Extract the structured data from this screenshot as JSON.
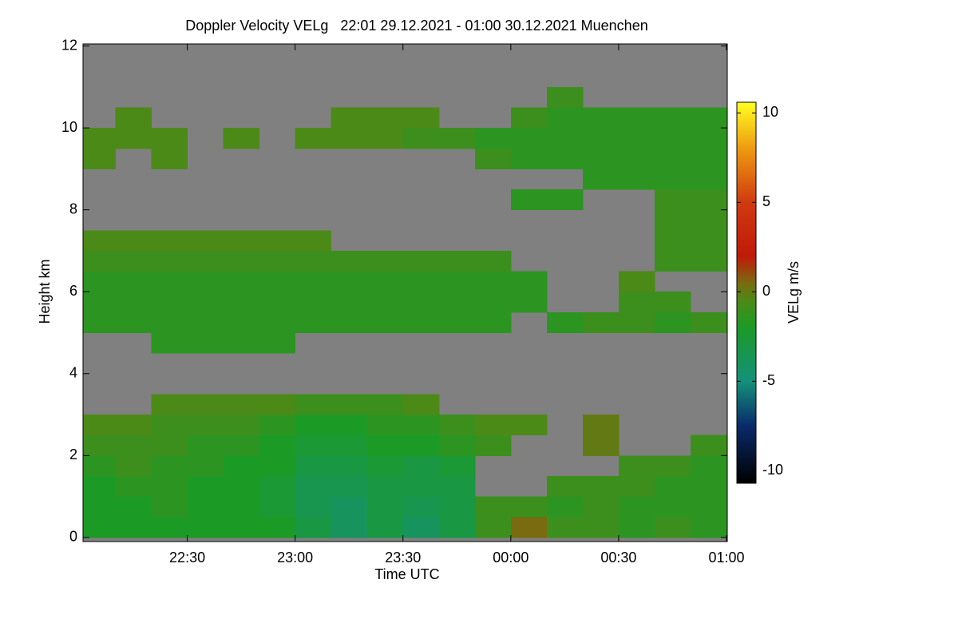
{
  "chart_data": {
    "type": "heatmap",
    "title": "Doppler Velocity VELg   22:01 29.12.2021 - 01:00 30.12.2021 Muenchen",
    "xlabel": "Time UTC",
    "ylabel": "Height km",
    "colorbar_label": "VELg m/s",
    "background": "#808080",
    "xlim": [
      "22:01",
      "01:00"
    ],
    "xticks": [
      "22:30",
      "23:00",
      "23:30",
      "00:00",
      "00:30",
      "01:00"
    ],
    "ylim": [
      -0.1,
      12.05
    ],
    "yticks": [
      0,
      2,
      4,
      6,
      8,
      10,
      12
    ],
    "clim": [
      -10.7,
      10.6
    ],
    "cticks": [
      -10,
      -5,
      0,
      5,
      10
    ],
    "colormap": [
      {
        "value": -10.7,
        "color": "#000000"
      },
      {
        "value": -7.5,
        "color": "#0a2a6a"
      },
      {
        "value": -5,
        "color": "#14917a"
      },
      {
        "value": -2,
        "color": "#1c9a26"
      },
      {
        "value": -0.5,
        "color": "#4c8a18"
      },
      {
        "value": 0.5,
        "color": "#7a6a10"
      },
      {
        "value": 2,
        "color": "#c01a08"
      },
      {
        "value": 5,
        "color": "#d03a10"
      },
      {
        "value": 8,
        "color": "#ee9a10"
      },
      {
        "value": 10.6,
        "color": "#ffff20"
      }
    ],
    "x_bins": [
      "22:01",
      "22:10",
      "22:20",
      "22:30",
      "22:40",
      "22:50",
      "23:00",
      "23:10",
      "23:20",
      "23:30",
      "23:40",
      "23:50",
      "00:00",
      "00:10",
      "00:20",
      "00:30",
      "00:40",
      "00:50",
      "01:00"
    ],
    "y_bins": [
      0,
      0.5,
      1,
      1.5,
      2,
      2.5,
      3,
      3.5,
      4,
      4.5,
      5,
      5.5,
      6,
      6.5,
      7,
      7.5,
      8,
      8.5,
      9,
      9.5,
      10,
      10.5,
      11,
      11.5,
      12
    ],
    "values": [
      [
        -2,
        -2,
        -2,
        -2,
        -2,
        -2,
        -3,
        -4,
        -3,
        -4,
        -3,
        -1,
        0.5,
        -1,
        -1,
        -1.5,
        -1,
        -1.5
      ],
      [
        -2,
        -2,
        -1.5,
        -2,
        -2,
        -2.5,
        -3.5,
        -4,
        -3,
        -3.5,
        -3,
        -1,
        -1,
        -1.5,
        -1,
        -1.5,
        -1.5,
        -1.5
      ],
      [
        -2,
        -1.5,
        -1.5,
        -2,
        -2,
        -2.5,
        -3.5,
        -3.5,
        -3,
        -3,
        -3,
        null,
        null,
        -1,
        -1,
        -1,
        -1.5,
        -1.5
      ],
      [
        -1.5,
        -1,
        -1.5,
        -1.5,
        -2,
        -2,
        -3,
        -3,
        -2.5,
        -3,
        -2.5,
        null,
        null,
        null,
        null,
        -1,
        -1,
        -1.5
      ],
      [
        -1,
        -1,
        -1,
        -1.5,
        -1.5,
        -2,
        -2.5,
        -2.5,
        -2,
        -2,
        -1.5,
        -1,
        null,
        null,
        0,
        null,
        null,
        -1
      ],
      [
        -0.5,
        -0.5,
        -1,
        -1,
        -1,
        -1.5,
        -2,
        -2,
        -1.5,
        -1.5,
        -1,
        -0.5,
        -0.5,
        null,
        0,
        null,
        null,
        null
      ],
      [
        null,
        null,
        -0.5,
        -0.5,
        -0.5,
        -0.5,
        -1,
        -1,
        -1,
        -0.5,
        null,
        null,
        null,
        null,
        null,
        null,
        null,
        null
      ],
      [
        null,
        null,
        null,
        null,
        null,
        null,
        null,
        null,
        null,
        null,
        null,
        null,
        null,
        null,
        null,
        null,
        null,
        null
      ],
      [
        null,
        null,
        null,
        null,
        null,
        null,
        null,
        null,
        null,
        null,
        null,
        null,
        null,
        null,
        null,
        null,
        null,
        null
      ],
      [
        null,
        null,
        -1.5,
        -1.5,
        -1.5,
        -1.5,
        null,
        null,
        null,
        null,
        null,
        null,
        null,
        null,
        null,
        null,
        null,
        null
      ],
      [
        -1.5,
        -1.5,
        -1.5,
        -1.5,
        -1.5,
        -1.5,
        -1.5,
        -1.5,
        -1.5,
        -1.5,
        -1.5,
        -1.5,
        null,
        -1.5,
        -1,
        -1,
        -1.5,
        -1
      ],
      [
        -1.5,
        -1.5,
        -1.5,
        -1.5,
        -1.5,
        -1.5,
        -1.5,
        -1.5,
        -1.5,
        -1.5,
        -1.5,
        -1.5,
        -1.5,
        null,
        null,
        -1,
        -1,
        null
      ],
      [
        -1.5,
        -1.5,
        -1.5,
        -1.5,
        -1.5,
        -1.5,
        -1.5,
        -1.5,
        -1.5,
        -1.5,
        -1.5,
        -1.5,
        -1.5,
        null,
        null,
        -0.5,
        null,
        null
      ],
      [
        -1,
        -1,
        -1,
        -1,
        -1,
        -1,
        -1,
        -1,
        -1,
        -1,
        -1,
        -1,
        null,
        null,
        null,
        null,
        -1,
        -1
      ],
      [
        -0.5,
        -0.5,
        -0.5,
        -0.5,
        -0.5,
        -0.5,
        -0.5,
        null,
        null,
        null,
        null,
        null,
        null,
        null,
        null,
        null,
        -1,
        -1
      ],
      [
        null,
        null,
        null,
        null,
        null,
        null,
        null,
        null,
        null,
        null,
        null,
        null,
        null,
        null,
        null,
        null,
        -1,
        -1
      ],
      [
        null,
        null,
        null,
        null,
        null,
        null,
        null,
        null,
        null,
        null,
        null,
        null,
        -1.5,
        -1.5,
        null,
        null,
        -1,
        -1
      ],
      [
        null,
        null,
        null,
        null,
        null,
        null,
        null,
        null,
        null,
        null,
        null,
        null,
        null,
        null,
        -1.5,
        -1.5,
        -1.5,
        -1.5
      ],
      [
        -0.5,
        null,
        -0.5,
        null,
        null,
        null,
        null,
        null,
        null,
        null,
        null,
        -1,
        -1.5,
        -1.5,
        -1.5,
        -1.5,
        -1.5,
        -1.5
      ],
      [
        -0.5,
        -0.5,
        -0.5,
        null,
        -0.5,
        null,
        -0.5,
        -0.5,
        -0.5,
        -1,
        -1,
        -1.5,
        -1.5,
        -1.5,
        -1.5,
        -1.5,
        -1.5,
        -1.5
      ],
      [
        null,
        -0.5,
        null,
        null,
        null,
        null,
        null,
        -0.5,
        -0.5,
        -0.5,
        null,
        null,
        -1,
        -1.5,
        -1.5,
        -1.5,
        -1.5,
        -1.5
      ],
      [
        null,
        null,
        null,
        null,
        null,
        null,
        null,
        null,
        null,
        null,
        null,
        null,
        null,
        -1,
        null,
        null,
        null,
        null
      ],
      [
        null,
        null,
        null,
        null,
        null,
        null,
        null,
        null,
        null,
        null,
        null,
        null,
        null,
        null,
        null,
        null,
        null,
        null
      ],
      [
        null,
        null,
        null,
        null,
        null,
        null,
        null,
        null,
        null,
        null,
        null,
        null,
        null,
        null,
        null,
        null,
        null,
        null
      ]
    ]
  }
}
